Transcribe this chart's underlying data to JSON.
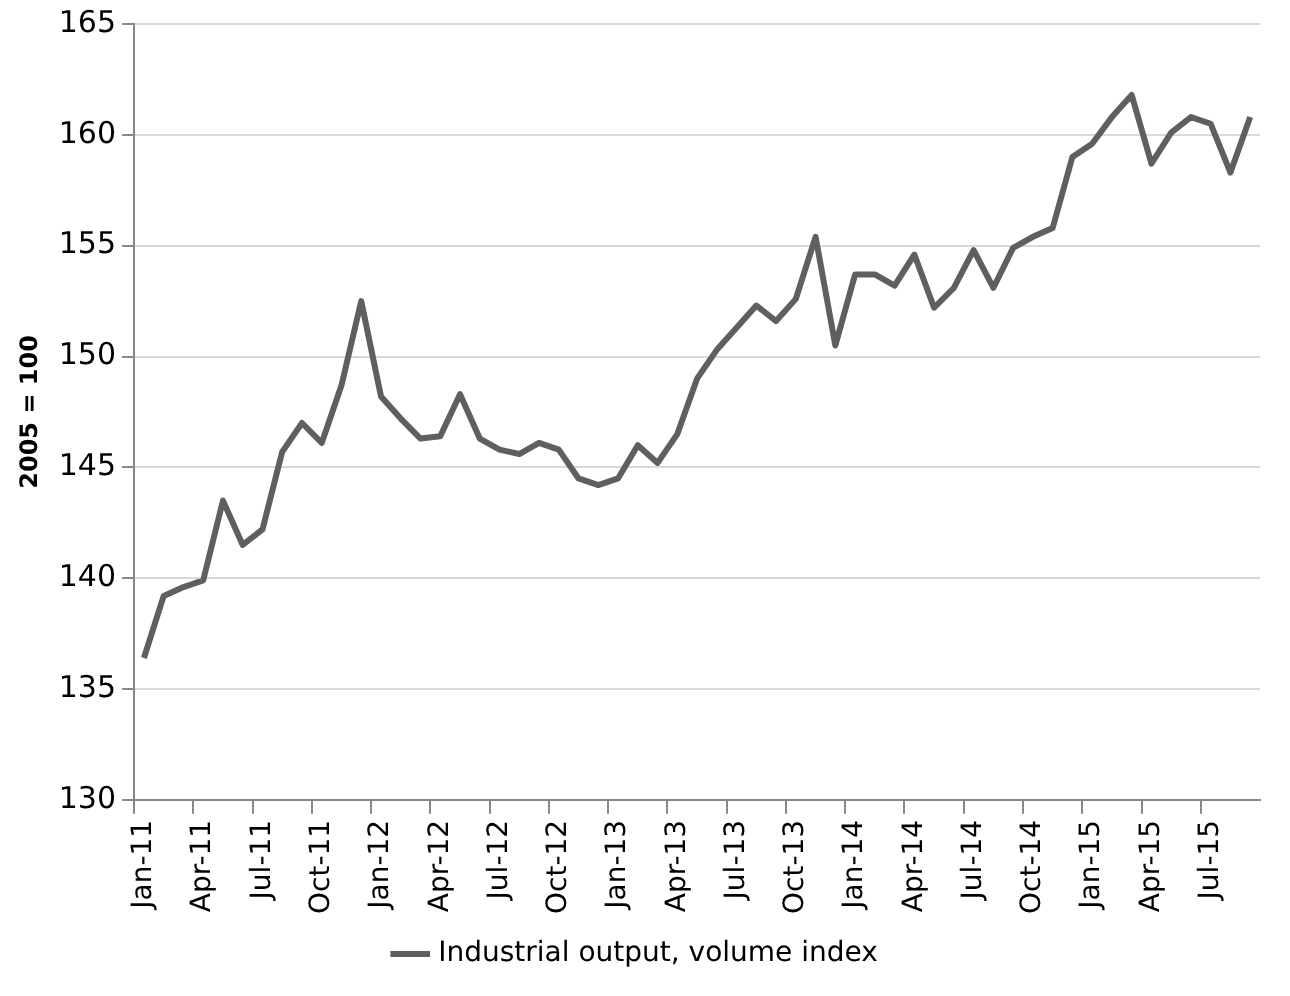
{
  "chart_data": {
    "type": "line",
    "ylabel": "2005 = 100",
    "categories": [
      "Jan-11",
      null,
      null,
      "Apr-11",
      null,
      null,
      "Jul-11",
      null,
      null,
      "Oct-11",
      null,
      null,
      "Jan-12",
      null,
      null,
      "Apr-12",
      null,
      null,
      "Jul-12",
      null,
      null,
      "Oct-12",
      null,
      null,
      "Jan-13",
      null,
      null,
      "Apr-13",
      null,
      null,
      "Jul-13",
      null,
      null,
      "Oct-13",
      null,
      null,
      "Jan-14",
      null,
      null,
      "Apr-14",
      null,
      null,
      "Jul-14",
      null,
      null,
      "Oct-14",
      null,
      null,
      "Jan-15",
      null,
      null,
      "Apr-15",
      null,
      null,
      "Jul-15",
      null,
      null
    ],
    "series": [
      {
        "name": "Industrial output, volume index",
        "color": "#5f5f5f",
        "values": [
          136.4,
          139.2,
          139.6,
          139.9,
          143.5,
          141.5,
          142.2,
          145.7,
          147.0,
          146.1,
          148.7,
          152.5,
          148.2,
          147.2,
          146.3,
          146.4,
          148.3,
          146.3,
          145.8,
          145.6,
          146.1,
          145.8,
          144.5,
          144.2,
          144.5,
          146.0,
          145.2,
          146.5,
          149.0,
          150.3,
          151.3,
          152.3,
          151.6,
          152.6,
          155.4,
          150.5,
          153.7,
          153.7,
          153.2,
          154.6,
          152.2,
          153.1,
          154.8,
          153.1,
          154.9,
          155.4,
          155.8,
          159.0,
          159.6,
          160.8,
          161.8,
          158.7,
          160.1,
          160.8,
          160.5,
          158.3,
          160.8
        ]
      }
    ],
    "ylim": [
      130,
      165
    ],
    "yticks": [
      130,
      135,
      140,
      145,
      150,
      155,
      160,
      165
    ],
    "grid": "y",
    "legend": "bottom",
    "marker": "none",
    "line_style": "solid"
  }
}
